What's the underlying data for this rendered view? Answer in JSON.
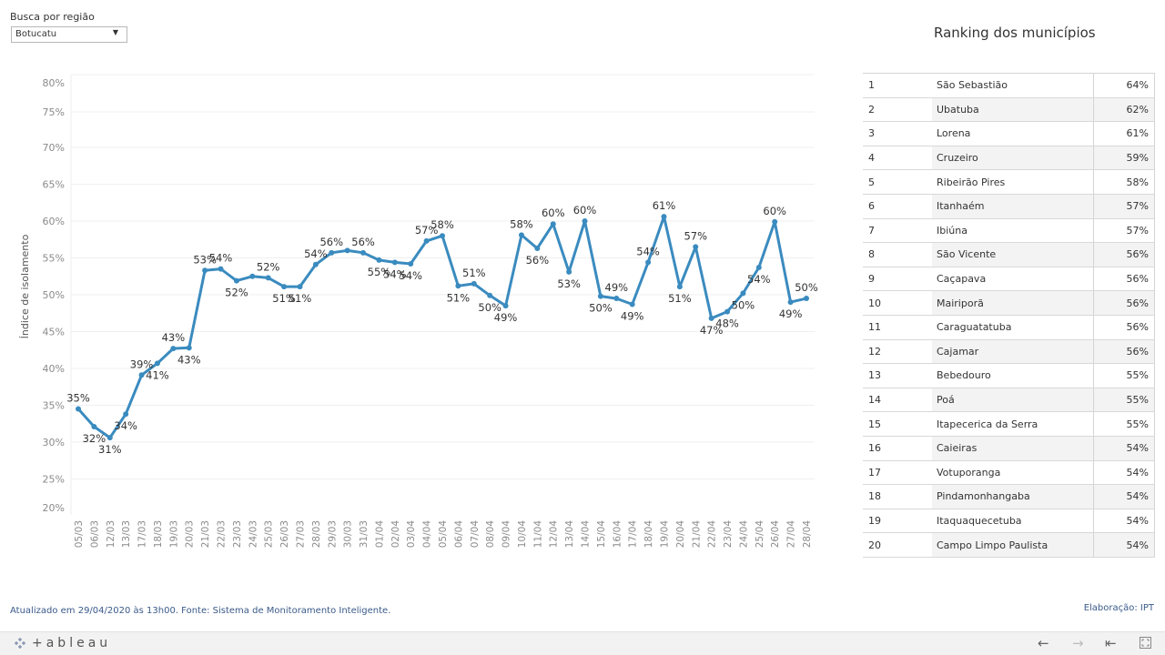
{
  "filter": {
    "label": "Busca por região",
    "selected": "Botucatu"
  },
  "chart_data": {
    "type": "line",
    "title": "",
    "xlabel": "",
    "ylabel": "Índice de isolamento",
    "ylim": [
      19,
      77
    ],
    "yticks": [
      "80%",
      "75%",
      "70%",
      "65%",
      "60%",
      "55%",
      "50%",
      "45%",
      "40%",
      "35%",
      "30%",
      "25%",
      "20%"
    ],
    "grid": true,
    "color": "#3a8bbf",
    "x": [
      "05/03",
      "06/03",
      "12/03",
      "13/03",
      "17/03",
      "18/03",
      "19/03",
      "20/03",
      "21/03",
      "22/03",
      "23/03",
      "24/03",
      "25/03",
      "26/03",
      "27/03",
      "28/03",
      "29/03",
      "30/03",
      "31/03",
      "01/04",
      "02/04",
      "03/04",
      "04/04",
      "05/04",
      "06/04",
      "07/04",
      "08/04",
      "09/04",
      "10/04",
      "11/04",
      "12/04",
      "13/04",
      "14/04",
      "15/04",
      "16/04",
      "17/04",
      "18/04",
      "19/04",
      "20/04",
      "21/04",
      "22/04",
      "23/04",
      "24/04",
      "25/04",
      "26/04",
      "27/04",
      "28/04"
    ],
    "values": [
      34.5,
      32.1,
      30.6,
      33.8,
      39.1,
      40.7,
      42.7,
      42.8,
      53.3,
      53.5,
      51.9,
      52.5,
      52.3,
      51.1,
      51.1,
      54.1,
      55.7,
      56.0,
      55.7,
      54.7,
      54.4,
      54.2,
      57.3,
      58.0,
      51.2,
      51.5,
      49.9,
      48.5,
      58.1,
      56.3,
      59.6,
      53.1,
      60.0,
      49.8,
      49.5,
      48.7,
      54.4,
      60.6,
      51.1,
      56.5,
      46.8,
      47.7,
      50.2,
      53.7,
      59.9,
      49.0,
      49.5
    ],
    "labels": [
      "35%",
      "32%",
      "31%",
      "34%",
      "39%",
      "41%",
      "43%",
      "43%",
      "53%",
      "54%",
      "52%",
      null,
      "52%",
      "51%",
      "51%",
      "54%",
      "56%",
      null,
      "56%",
      "55%",
      "54%",
      "54%",
      "57%",
      "58%",
      "51%",
      "51%",
      "50%",
      "49%",
      "58%",
      "56%",
      "60%",
      "53%",
      "60%",
      "50%",
      "49%",
      "49%",
      "54%",
      "61%",
      "51%",
      "57%",
      "47%",
      "48%",
      "50%",
      "54%",
      "60%",
      "49%",
      "50%"
    ],
    "label_side": [
      "above",
      "below",
      "below",
      "below",
      "above",
      "below",
      "above",
      "below",
      "above",
      "above",
      "below",
      null,
      "above",
      "below",
      "below",
      "above",
      "above",
      null,
      "above",
      "below",
      "below",
      "below",
      "above",
      "above",
      "below",
      "above",
      "below",
      "below",
      "above",
      "below",
      "above",
      "below",
      "above",
      "below",
      "above",
      "below",
      "above",
      "above",
      "below",
      "above",
      "below",
      "below",
      "below",
      "below",
      "above",
      "below",
      "above"
    ]
  },
  "ranking": {
    "title": "Ranking dos municípios",
    "rows": [
      {
        "pos": "1",
        "name": "São Sebastião",
        "pct": "64%"
      },
      {
        "pos": "2",
        "name": "Ubatuba",
        "pct": "62%"
      },
      {
        "pos": "3",
        "name": "Lorena",
        "pct": "61%"
      },
      {
        "pos": "4",
        "name": "Cruzeiro",
        "pct": "59%"
      },
      {
        "pos": "5",
        "name": "Ribeirão Pires",
        "pct": "58%"
      },
      {
        "pos": "6",
        "name": "Itanhaém",
        "pct": "57%"
      },
      {
        "pos": "7",
        "name": "Ibiúna",
        "pct": "57%"
      },
      {
        "pos": "8",
        "name": "São Vicente",
        "pct": "56%"
      },
      {
        "pos": "9",
        "name": "Caçapava",
        "pct": "56%"
      },
      {
        "pos": "10",
        "name": "Mairiporã",
        "pct": "56%"
      },
      {
        "pos": "11",
        "name": "Caraguatatuba",
        "pct": "56%"
      },
      {
        "pos": "12",
        "name": "Cajamar",
        "pct": "56%"
      },
      {
        "pos": "13",
        "name": "Bebedouro",
        "pct": "55%"
      },
      {
        "pos": "14",
        "name": "Poá",
        "pct": "55%"
      },
      {
        "pos": "15",
        "name": "Itapecerica da Serra",
        "pct": "55%"
      },
      {
        "pos": "16",
        "name": "Caieiras",
        "pct": "54%"
      },
      {
        "pos": "17",
        "name": "Votuporanga",
        "pct": "54%"
      },
      {
        "pos": "18",
        "name": "Pindamonhangaba",
        "pct": "54%"
      },
      {
        "pos": "19",
        "name": "Itaquaquecetuba",
        "pct": "54%"
      },
      {
        "pos": "20",
        "name": "Campo Limpo Paulista",
        "pct": "54%"
      }
    ]
  },
  "footer": {
    "source": "Atualizado em 29/04/2020 às 13h00. Fonte: Sistema de Monitoramento Inteligente.",
    "credit": "Elaboração: IPT"
  },
  "toolbar": {
    "logo_text": "+ableau",
    "icons": [
      "undo-icon",
      "redo-icon",
      "revert-icon",
      "fullscreen-icon"
    ]
  }
}
